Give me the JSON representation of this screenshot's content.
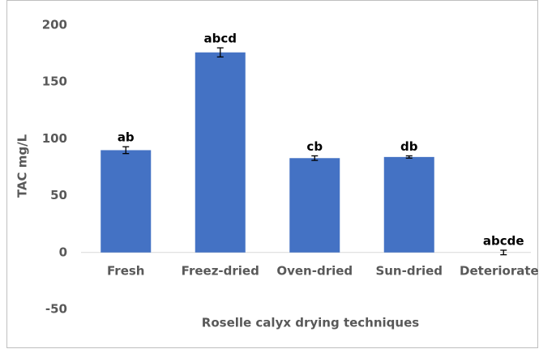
{
  "chart_data": {
    "type": "bar",
    "categories": [
      "Fresh",
      "Freez-dried",
      "Oven-dried",
      "Sun-dried",
      "Deteriorated"
    ],
    "values": [
      90,
      176,
      83,
      84,
      0
    ],
    "errors": [
      3,
      4,
      2,
      1,
      2
    ],
    "annotations": [
      "ab",
      "abcd",
      "cb",
      "db",
      "abcde"
    ],
    "color": "#4472c4",
    "ylim": [
      -50,
      200
    ],
    "yticks": [
      -50,
      0,
      50,
      100,
      150,
      200
    ],
    "y_label": "TAC mg/L",
    "x_label": "Roselle calyx drying techniques"
  }
}
